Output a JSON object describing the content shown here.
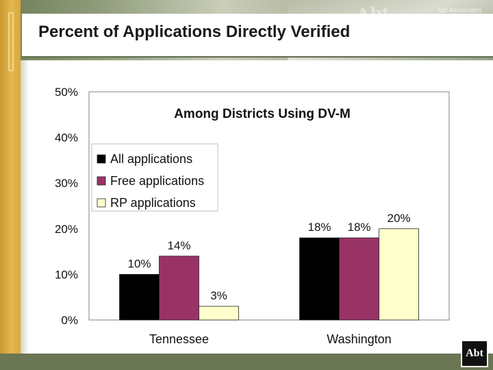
{
  "slide": {
    "title": "Percent of Applications Directly Verified",
    "banner_word": "Abt",
    "banner_credit": "Abt Associates",
    "logo_text": "Abt"
  },
  "colors": {
    "all": "#000000",
    "free": "#993366",
    "rp": "#ffffcc",
    "footer": "#6b7653",
    "accent": "#d9a93d"
  },
  "chart_data": {
    "type": "bar",
    "title": "Among Districts Using DV-M",
    "categories": [
      "Tennessee",
      "Washington"
    ],
    "series": [
      {
        "name": "All applications",
        "values": [
          10,
          18
        ],
        "labels": [
          "10%",
          "18%"
        ],
        "color": "#000000"
      },
      {
        "name": "Free applications",
        "values": [
          14,
          18
        ],
        "labels": [
          "14%",
          "18%"
        ],
        "color": "#993366"
      },
      {
        "name": "RP applications",
        "values": [
          3,
          20
        ],
        "labels": [
          "3%",
          "20%"
        ],
        "color": "#ffffcc"
      }
    ],
    "ylim": [
      0,
      50
    ],
    "yticks": [
      "0%",
      "10%",
      "20%",
      "30%",
      "40%",
      "50%"
    ],
    "xlabel": "",
    "ylabel": "",
    "grid": false,
    "legend": "top-left"
  }
}
